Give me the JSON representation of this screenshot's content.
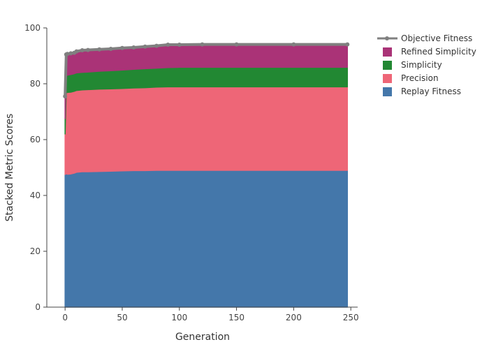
{
  "chart_data": {
    "type": "area",
    "xlabel": "Generation",
    "ylabel": "Stacked Metric Scores",
    "xlim": [
      -16,
      256
    ],
    "ylim": [
      0,
      100
    ],
    "x_ticks": [
      0,
      50,
      100,
      150,
      200,
      250
    ],
    "y_ticks": [
      0,
      20,
      40,
      60,
      80,
      100
    ],
    "legend_placement": "top-right",
    "x": [
      0,
      1,
      2,
      5,
      8,
      10,
      15,
      20,
      30,
      40,
      50,
      60,
      70,
      80,
      90,
      100,
      120,
      150,
      200,
      247
    ],
    "series": [
      {
        "name": "Replay Fitness",
        "color": "#4477aa",
        "kind": "area",
        "values": [
          47.5,
          47.8,
          47.6,
          47.7,
          48.0,
          48.3,
          48.5,
          48.5,
          48.6,
          48.7,
          48.8,
          48.9,
          48.9,
          49.0,
          49.0,
          49.0,
          49.0,
          49.0,
          49.0,
          49.0
        ]
      },
      {
        "name": "Precision",
        "color": "#ee6677",
        "kind": "area",
        "values": [
          14.5,
          29.0,
          29.3,
          29.3,
          29.3,
          29.3,
          29.3,
          29.4,
          29.5,
          29.5,
          29.5,
          29.6,
          29.7,
          29.8,
          29.9,
          29.9,
          29.9,
          29.9,
          29.9,
          29.9
        ]
      },
      {
        "name": "Simplicity",
        "color": "#228833",
        "kind": "area",
        "values": [
          5.5,
          6.0,
          6.2,
          6.3,
          6.3,
          6.3,
          6.3,
          6.3,
          6.4,
          6.5,
          6.6,
          6.7,
          6.8,
          6.8,
          6.9,
          7.0,
          7.0,
          7.0,
          7.0,
          7.0
        ]
      },
      {
        "name": "Refined Simplicity",
        "color": "#aa3377",
        "kind": "area",
        "values": [
          7.5,
          7.5,
          7.6,
          7.6,
          7.7,
          7.7,
          7.8,
          7.8,
          7.8,
          7.8,
          7.9,
          7.9,
          7.9,
          8.0,
          8.0,
          8.1,
          8.2,
          8.2,
          8.2,
          8.2
        ]
      },
      {
        "name": "Objective Fitness",
        "color": "#808080",
        "kind": "line",
        "values": [
          75.5,
          90.5,
          90.7,
          90.9,
          91.1,
          91.6,
          92.0,
          92.1,
          92.3,
          92.5,
          92.8,
          93.0,
          93.3,
          93.6,
          94.0,
          94.0,
          94.1,
          94.1,
          94.1,
          94.1
        ]
      }
    ],
    "legend_order": [
      "Objective Fitness",
      "Refined Simplicity",
      "Simplicity",
      "Precision",
      "Replay Fitness"
    ]
  }
}
